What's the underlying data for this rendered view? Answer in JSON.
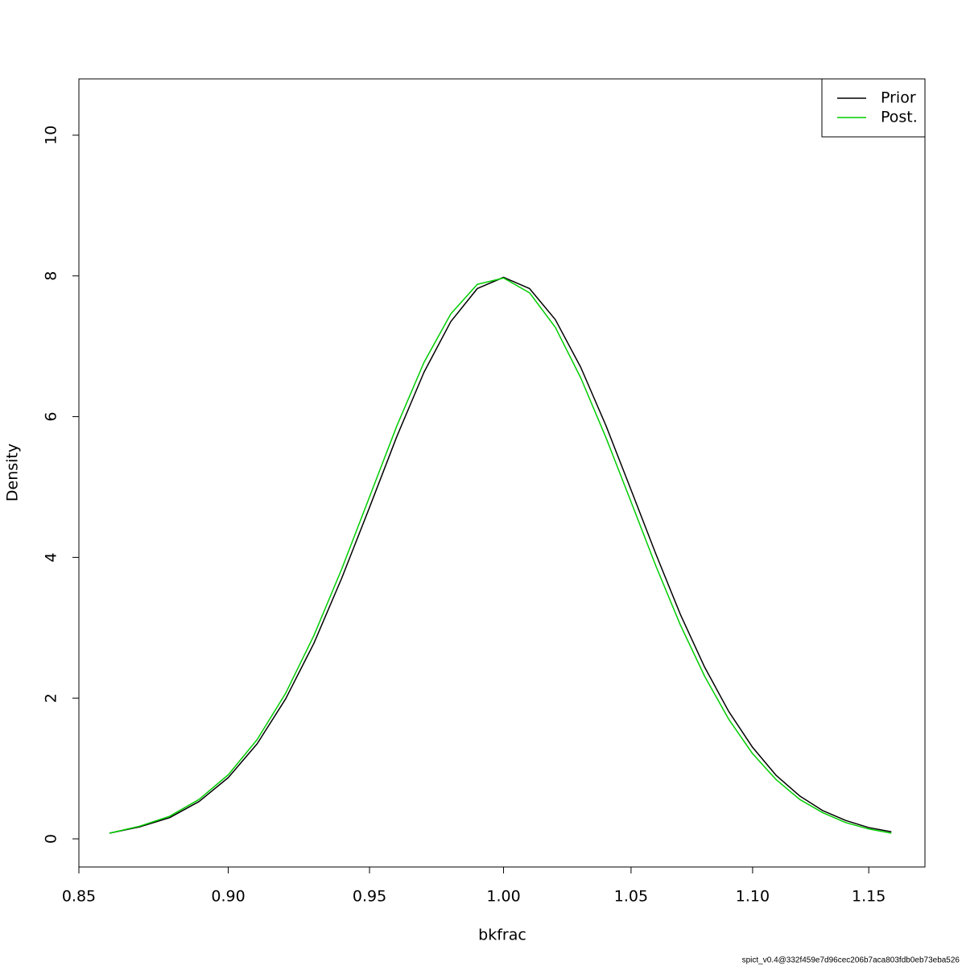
{
  "chart_data": {
    "type": "line",
    "xlabel": "bkfrac",
    "ylabel": "Density",
    "x_scale": "log",
    "legend": "topright",
    "caption": "spict_v0.4@332f459e7d96cec206b7aca803fdb0eb73eba526",
    "x": [
      0.86,
      0.87,
      0.88,
      0.89,
      0.9,
      0.91,
      0.92,
      0.93,
      0.94,
      0.95,
      0.96,
      0.97,
      0.98,
      0.99,
      1.0,
      1.01,
      1.02,
      1.03,
      1.04,
      1.05,
      1.06,
      1.07,
      1.08,
      1.09,
      1.1,
      1.11,
      1.12,
      1.13,
      1.14,
      1.15,
      1.16
    ],
    "series": [
      {
        "name": "Prior",
        "color": "#000000",
        "values": [
          0.08,
          0.17,
          0.3,
          0.53,
          0.87,
          1.35,
          1.99,
          2.78,
          3.71,
          4.71,
          5.72,
          6.63,
          7.35,
          7.82,
          7.98,
          7.82,
          7.38,
          6.7,
          5.87,
          4.96,
          4.05,
          3.19,
          2.44,
          1.81,
          1.3,
          0.9,
          0.61,
          0.4,
          0.26,
          0.16,
          0.1
        ]
      },
      {
        "name": "Post.",
        "color": "#00cd00",
        "values": [
          0.08,
          0.18,
          0.32,
          0.56,
          0.91,
          1.41,
          2.07,
          2.89,
          3.84,
          4.86,
          5.87,
          6.77,
          7.46,
          7.88,
          7.97,
          7.76,
          7.27,
          6.55,
          5.7,
          4.79,
          3.88,
          3.04,
          2.31,
          1.7,
          1.21,
          0.84,
          0.56,
          0.37,
          0.23,
          0.14,
          0.08
        ]
      }
    ],
    "xlim": [
      0.85,
      1.175
    ],
    "xticks": [
      0.85,
      {
        "value": 0.9,
        "label": "0.90"
      },
      0.95,
      {
        "value": 1.0,
        "label": "1.00"
      },
      1.05,
      {
        "value": 1.1,
        "label": "1.10"
      },
      1.15
    ],
    "ylim": [
      -0.4,
      10.8
    ],
    "yticks": [
      0,
      2,
      4,
      6,
      8,
      10
    ]
  }
}
